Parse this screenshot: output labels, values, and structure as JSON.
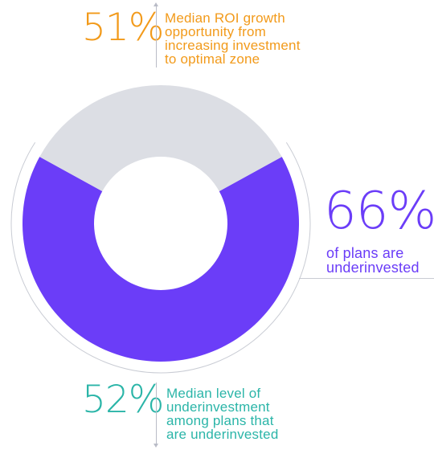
{
  "chart_data": {
    "type": "pie",
    "donut": true,
    "values": [
      66,
      34
    ],
    "colors": [
      "#6b3df8",
      "#dcdee4"
    ]
  },
  "annotations": {
    "top": {
      "stat": "51%",
      "lines": [
        "Median ROI growth",
        "opportunity from",
        "increasing investment",
        "to optimal zone"
      ],
      "color": "#f29a1a"
    },
    "right": {
      "stat": "66%",
      "lines": [
        "of plans are",
        "underinvested"
      ],
      "color": "#6b3df8"
    },
    "bottom": {
      "stat": "52%",
      "lines": [
        "Median level of",
        "underinvestment",
        "among plans that",
        "are underinvested"
      ],
      "color": "#2bb5a8"
    }
  },
  "colors": {
    "divider": "#b9bcc7",
    "outer_arc": "#c9ccd4"
  }
}
